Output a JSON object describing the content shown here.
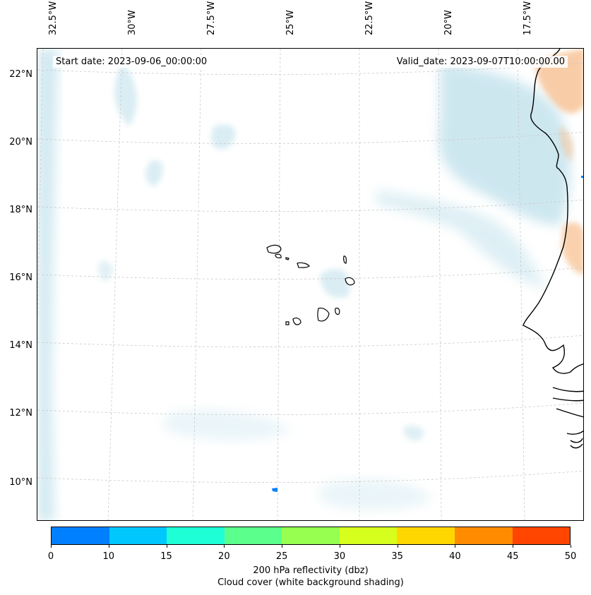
{
  "map": {
    "start_date": "Start date: 2023-09-06_00:00:00",
    "valid_date": "Valid_date: 2023-09-07T10:00:00.00",
    "longitude_labels": [
      "32.5°W",
      "30°W",
      "27.5°W",
      "25°W",
      "22.5°W",
      "20°W",
      "17.5°W"
    ],
    "latitude_labels": [
      "22°N",
      "20°N",
      "18°N",
      "16°N",
      "14°N",
      "12°N",
      "10°N"
    ],
    "region": "Cape Verde Islands and West African coast",
    "colors": {
      "coastline": "#000000",
      "cloud": "#add8e6",
      "high_reflectivity": "#f4a460",
      "gridline": "#c8c8c8"
    }
  },
  "colorbar": {
    "ticks": [
      "0",
      "10",
      "15",
      "20",
      "25",
      "30",
      "35",
      "40",
      "45",
      "50"
    ],
    "colors": [
      "#0080ff",
      "#00c8ff",
      "#1effd6",
      "#5aff8c",
      "#96ff50",
      "#d7ff1e",
      "#ffd700",
      "#ff8c00",
      "#ff4500"
    ],
    "label_line1": "200 hPa reflectivity (dbz)",
    "label_line2": "Cloud cover (white background shading)"
  }
}
